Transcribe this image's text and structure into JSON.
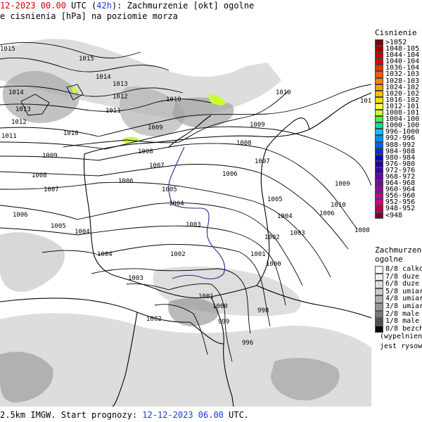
{
  "header": {
    "line1_date": "12-2023",
    "line1_time": "00.00",
    "line1_utc": "UTC (",
    "line1_lead": "42h",
    "line1_rest": "): Zachmurzenie [okt] ogolne",
    "line2": "e cisnienia [hPa] na poziomie morza"
  },
  "footer": {
    "model": "2.5km IMGW. Start prognozy: ",
    "start_date": "12-12-2023",
    "start_time": "06.00",
    "utc": " UTC."
  },
  "pressure_legend": {
    "title": "Cisnienie [hP",
    "items": [
      {
        "label": ">1052",
        "color": "#7a0000"
      },
      {
        "label": "1048-105",
        "color": "#a00000"
      },
      {
        "label": "1044-104",
        "color": "#c80000"
      },
      {
        "label": "1040-104",
        "color": "#e60000"
      },
      {
        "label": "1036-104",
        "color": "#ff2a00"
      },
      {
        "label": "1032-103",
        "color": "#ff5a00"
      },
      {
        "label": "1028-103",
        "color": "#ff8000"
      },
      {
        "label": "1024-102",
        "color": "#ffa000"
      },
      {
        "label": "1020-102",
        "color": "#ffc000"
      },
      {
        "label": "1016-102",
        "color": "#ffe000"
      },
      {
        "label": "1012-101",
        "color": "#ffff50"
      },
      {
        "label": "1008-101",
        "color": "#c8ff30"
      },
      {
        "label": "1004-100",
        "color": "#40ff40"
      },
      {
        "label": "1000-100",
        "color": "#00e0a0"
      },
      {
        "label": "996-1000",
        "color": "#00c8ff"
      },
      {
        "label": "992-996",
        "color": "#0090ff"
      },
      {
        "label": "988-992",
        "color": "#0060ff"
      },
      {
        "label": "984-988",
        "color": "#0030e0"
      },
      {
        "label": "980-984",
        "color": "#0000c0"
      },
      {
        "label": "976-980",
        "color": "#2000a0"
      },
      {
        "label": "972-976",
        "color": "#4000a0"
      },
      {
        "label": "968-972",
        "color": "#6000a0"
      },
      {
        "label": "964-968",
        "color": "#8000a0"
      },
      {
        "label": "960-964",
        "color": "#a000a0"
      },
      {
        "label": "956-960",
        "color": "#c00090"
      },
      {
        "label": "952-956",
        "color": "#d00070"
      },
      {
        "label": "948-952",
        "color": "#b00050"
      },
      {
        "label": "<948",
        "color": "#800030"
      }
    ]
  },
  "cloud_legend": {
    "title_line1": "Zachmurzenie",
    "title_line2": "ogolne",
    "items": [
      {
        "label": "8/8 calkow",
        "color": "#ffffff"
      },
      {
        "label": "7/8 duze",
        "color": "#f0f0f0"
      },
      {
        "label": "6/8 duze",
        "color": "#dcdcdc"
      },
      {
        "label": "5/8 umiar",
        "color": "#c8c8c8"
      },
      {
        "label": "4/8 umiar",
        "color": "#b0b0b0"
      },
      {
        "label": "3/8 umiar",
        "color": "#969696"
      },
      {
        "label": "2/8 male",
        "color": "#787878"
      },
      {
        "label": "1/8 male",
        "color": "#505050"
      },
      {
        "label": "0/8 bezch",
        "color": "#000000"
      }
    ],
    "note_line1": "(wypelnienie",
    "note_line2": "jest rysowe"
  },
  "isobar_labels": [
    {
      "text": "1015"
    },
    {
      "text": "1015"
    },
    {
      "text": "1014"
    },
    {
      "text": "1014"
    },
    {
      "text": "1013"
    },
    {
      "text": "1013"
    },
    {
      "text": "1012"
    },
    {
      "text": "1012"
    },
    {
      "text": "1011"
    },
    {
      "text": "1011"
    },
    {
      "text": "1010"
    },
    {
      "text": "1010"
    },
    {
      "text": "1010"
    },
    {
      "text": "1009"
    },
    {
      "text": "1009"
    },
    {
      "text": "1009"
    },
    {
      "text": "1008"
    },
    {
      "text": "1008"
    },
    {
      "text": "1008"
    },
    {
      "text": "1007"
    },
    {
      "text": "1007"
    },
    {
      "text": "1007"
    },
    {
      "text": "1006"
    },
    {
      "text": "1006"
    },
    {
      "text": "1006"
    },
    {
      "text": "1006"
    },
    {
      "text": "1005"
    },
    {
      "text": "1005"
    },
    {
      "text": "1005"
    },
    {
      "text": "1004"
    },
    {
      "text": "1004"
    },
    {
      "text": "1004"
    },
    {
      "text": "1004"
    },
    {
      "text": "1003"
    },
    {
      "text": "1003"
    },
    {
      "text": "1003"
    },
    {
      "text": "1002"
    },
    {
      "text": "1002"
    },
    {
      "text": "1002"
    },
    {
      "text": "1001"
    },
    {
      "text": "1001"
    },
    {
      "text": "1000"
    },
    {
      "text": "1000"
    },
    {
      "text": "999"
    },
    {
      "text": "998"
    },
    {
      "text": "996"
    },
    {
      "text": "1008"
    },
    {
      "text": "1009"
    },
    {
      "text": "1010"
    },
    {
      "text": "101"
    }
  ]
}
